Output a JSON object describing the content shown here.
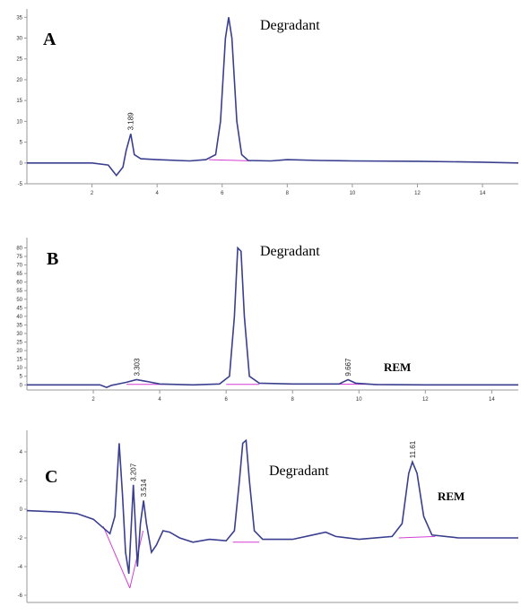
{
  "chart_data": [
    {
      "type": "line",
      "label": "A",
      "annotations": [
        "Degradant"
      ],
      "color": "#3a3f8f",
      "baseline_color": "#d43fd4",
      "x": [
        0,
        2,
        2.5,
        2.75,
        2.95,
        3.05,
        3.19,
        3.3,
        3.5,
        4,
        5,
        5.5,
        5.8,
        5.95,
        6.1,
        6.2,
        6.3,
        6.45,
        6.6,
        6.8,
        7.5,
        8,
        9,
        10,
        12,
        14,
        15.1
      ],
      "values": [
        0,
        0,
        -0.5,
        -3,
        -1,
        3,
        7,
        2,
        1,
        0.8,
        0.5,
        0.8,
        2,
        10,
        30,
        35,
        30,
        10,
        2,
        0.6,
        0.5,
        0.8,
        0.6,
        0.5,
        0.4,
        0.2,
        0
      ],
      "baselines": [
        [
          5.6,
          0.8,
          6.9,
          0.5
        ]
      ],
      "peak_labels": [
        3.189
      ],
      "xlim": [
        0,
        15.1
      ],
      "ylim": [
        -5,
        37
      ],
      "xticks": [
        2,
        4,
        6,
        8,
        10,
        12,
        14
      ],
      "yticks": [
        -5,
        0,
        5,
        10,
        15,
        20,
        25,
        30,
        35
      ]
    },
    {
      "type": "line",
      "label": "B",
      "annotations": [
        "Degradant",
        "REM"
      ],
      "color": "#3a3f8f",
      "baseline_color": "#d43fd4",
      "x": [
        0,
        2.2,
        2.4,
        2.55,
        3,
        3.3,
        3.6,
        4,
        5,
        5.8,
        6.1,
        6.25,
        6.35,
        6.45,
        6.55,
        6.7,
        7,
        8,
        9.4,
        9.67,
        9.9,
        10.5,
        12,
        14.8
      ],
      "values": [
        0,
        0,
        -1.5,
        -0.3,
        1.5,
        3,
        2,
        0.5,
        0,
        0.5,
        5,
        40,
        80,
        78,
        40,
        5,
        1,
        0.5,
        0.5,
        3,
        1,
        0.2,
        0,
        0
      ],
      "baselines": [
        [
          3,
          0.3,
          4.3,
          0.3
        ],
        [
          6,
          0.3,
          7,
          0.3
        ],
        [
          8.8,
          0.5,
          10.6,
          0.3
        ]
      ],
      "peak_labels": [
        3.303,
        9.667
      ],
      "xlim": [
        0,
        14.8
      ],
      "ylim": [
        -3,
        86
      ],
      "xticks": [
        2,
        4,
        6,
        8,
        10,
        12,
        14
      ],
      "yticks": [
        0,
        5,
        10,
        15,
        20,
        25,
        30,
        35,
        40,
        45,
        50,
        55,
        60,
        65,
        70,
        75,
        80
      ]
    },
    {
      "type": "line",
      "label": "C",
      "annotations": [
        "Degradant",
        "REM"
      ],
      "color": "#3a3f8f",
      "baseline_color": "#d43fd4",
      "x": [
        0,
        1,
        1.5,
        2,
        2.3,
        2.5,
        2.65,
        2.78,
        2.88,
        2.97,
        3.07,
        3.207,
        3.33,
        3.42,
        3.514,
        3.6,
        3.75,
        3.9,
        4.1,
        4.3,
        4.6,
        5,
        5.5,
        6,
        6.25,
        6.4,
        6.5,
        6.6,
        6.7,
        6.85,
        7.1,
        8,
        8.6,
        9,
        9.3,
        10,
        11,
        11.3,
        11.5,
        11.61,
        11.75,
        11.95,
        12.2,
        13,
        14.8
      ],
      "values": [
        -0.1,
        -0.2,
        -0.3,
        -0.7,
        -1.3,
        -1.7,
        -0.5,
        4.6,
        1,
        -3,
        -4.5,
        1.7,
        -4,
        -1,
        0.6,
        -1,
        -3,
        -2.5,
        -1.5,
        -1.6,
        -2,
        -2.3,
        -2.1,
        -2.2,
        -1.5,
        2,
        4.6,
        4.8,
        2,
        -1.5,
        -2.1,
        -2.1,
        -1.8,
        -1.6,
        -1.9,
        -2.1,
        -1.9,
        -1,
        2.5,
        3.3,
        2.5,
        -0.5,
        -1.8,
        -2,
        -2
      ],
      "baselines": [
        [
          2.3,
          -1.2,
          3.1,
          -5.5
        ],
        [
          3.1,
          -5.5,
          3.5,
          -1.5
        ],
        [
          6.2,
          -2.3,
          7,
          -2.3
        ],
        [
          11.2,
          -2,
          12.3,
          -1.9
        ]
      ],
      "peak_labels": [
        3.207,
        3.514,
        11.61
      ],
      "xlim": [
        0,
        14.8
      ],
      "ylim": [
        -6.5,
        5.5
      ],
      "yticks": [
        -6,
        -4,
        -2,
        0,
        2,
        4
      ]
    }
  ]
}
